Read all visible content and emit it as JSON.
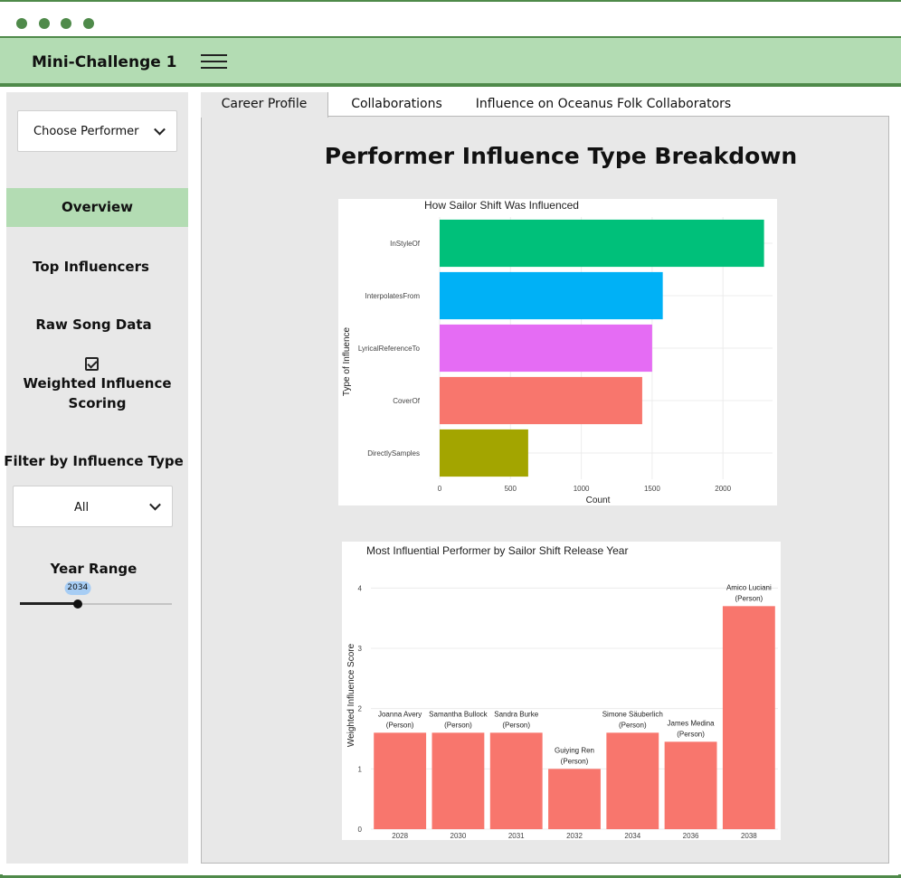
{
  "app": {
    "title": "Mini-Challenge 1"
  },
  "sidebar": {
    "performer_select": {
      "value": "Choose Performer"
    },
    "nav": [
      "Overview",
      "Top Influencers",
      "Raw Song Data"
    ],
    "weighted_label": [
      "Weighted Influence",
      "Scoring"
    ],
    "weighted_checked": true,
    "filter_label": "Filter by Influence Type",
    "filter_value": "All",
    "year_label": "Year Range",
    "year_value": "2034",
    "year_fraction": 0.38
  },
  "tabs": [
    "Career Profile",
    "Collaborations",
    "Influence on Oceanus Folk Collaborators"
  ],
  "main": {
    "title": "Performer Influence Type Breakdown"
  },
  "colors": {
    "accent": "#b3dcb3",
    "border": "#4f8a4a",
    "bar2": "#f8766d"
  },
  "chart_data": [
    {
      "type": "bar",
      "orientation": "horizontal",
      "title": "How Sailor Shift Was Influenced",
      "xlabel": "Count",
      "ylabel": "Type of Influence",
      "categories": [
        "InStyleOf",
        "InterpolatesFrom",
        "LyricalReferenceTo",
        "CoverOf",
        "DirectlySamples"
      ],
      "values": [
        2290,
        1575,
        1500,
        1430,
        625
      ],
      "colors": [
        "#00c07a",
        "#00b1f6",
        "#e56cf4",
        "#f8766d",
        "#a3a500"
      ],
      "xlim": [
        0,
        2350
      ],
      "xticks": [
        0,
        500,
        1000,
        1500,
        2000
      ],
      "grid": true
    },
    {
      "type": "bar",
      "title": "Most Influential Performer by Sailor Shift Release Year",
      "xlabel": "",
      "ylabel": "Weighted Influence Score",
      "categories": [
        "2028",
        "2030",
        "2031",
        "2032",
        "2034",
        "2036",
        "2038"
      ],
      "values": [
        1.6,
        1.6,
        1.6,
        1.0,
        1.6,
        1.45,
        3.7
      ],
      "labels": [
        [
          "Joanna Avery",
          "(Person)"
        ],
        [
          "Samantha Bullock",
          "(Person)"
        ],
        [
          "Sandra Burke",
          "(Person)"
        ],
        [
          "Guiying Ren",
          "(Person)"
        ],
        [
          "Simone Säuberlich",
          "(Person)"
        ],
        [
          "James Medina",
          "(Person)"
        ],
        [
          "Amico Luciani",
          "(Person)"
        ]
      ],
      "ylim": [
        0,
        4.2
      ],
      "yticks": [
        0,
        1,
        2,
        3,
        4
      ],
      "color": "#f8766d",
      "grid": true
    }
  ]
}
